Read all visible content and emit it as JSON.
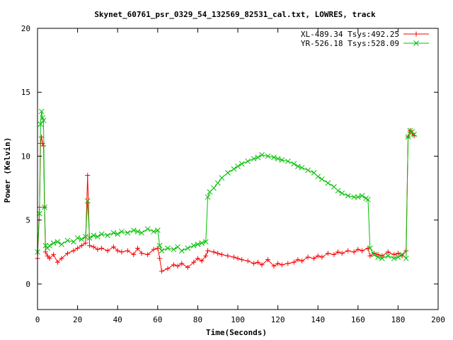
{
  "chart_data": {
    "type": "scatter",
    "title": "Skynet_60761_psr_0329_54_132569_82531_cal.txt, LOWRES, track",
    "xlabel": "Time(Seconds)",
    "ylabel": "Power (Kelvin)",
    "xlim": [
      0,
      200
    ],
    "ylim": [
      -2,
      20
    ],
    "xticks": [
      0,
      20,
      40,
      60,
      80,
      100,
      120,
      140,
      160,
      180,
      200
    ],
    "yticks": [
      0,
      5,
      10,
      15,
      20
    ],
    "grid": false,
    "legend_position": "top-right",
    "series": [
      {
        "name": "XL-489.34 Tsys:492.25",
        "color": "#ff0000",
        "marker": "plus",
        "x": [
          0,
          1,
          1.5,
          2,
          2.5,
          3,
          3.5,
          4,
          5,
          6,
          8,
          10,
          12,
          15,
          18,
          20,
          22,
          24,
          25,
          26,
          28,
          30,
          32,
          35,
          38,
          40,
          42,
          45,
          48,
          50,
          52,
          55,
          58,
          60,
          61,
          62,
          65,
          68,
          70,
          72,
          75,
          78,
          80,
          82,
          84,
          85,
          88,
          90,
          92,
          95,
          98,
          100,
          102,
          105,
          108,
          110,
          112,
          115,
          118,
          120,
          122,
          125,
          128,
          130,
          132,
          135,
          138,
          140,
          142,
          145,
          148,
          150,
          152,
          155,
          158,
          160,
          162,
          165,
          166,
          168,
          170,
          172,
          175,
          178,
          180,
          182,
          184,
          185,
          186,
          187,
          188
        ],
        "y": [
          2.0,
          6.0,
          11.0,
          11.5,
          11.0,
          10.8,
          6.0,
          2.5,
          2.2,
          2.0,
          2.3,
          1.7,
          2.0,
          2.4,
          2.6,
          2.8,
          3.0,
          3.2,
          8.5,
          3.0,
          2.9,
          2.7,
          2.8,
          2.6,
          2.9,
          2.6,
          2.5,
          2.6,
          2.3,
          2.8,
          2.4,
          2.3,
          2.7,
          2.8,
          2.0,
          1.0,
          1.2,
          1.5,
          1.4,
          1.6,
          1.3,
          1.7,
          2.0,
          1.8,
          2.2,
          2.6,
          2.5,
          2.4,
          2.3,
          2.2,
          2.1,
          2.0,
          1.9,
          1.8,
          1.6,
          1.7,
          1.5,
          1.9,
          1.4,
          1.6,
          1.5,
          1.6,
          1.7,
          1.9,
          1.8,
          2.1,
          2.0,
          2.2,
          2.1,
          2.4,
          2.3,
          2.5,
          2.4,
          2.6,
          2.5,
          2.7,
          2.6,
          2.8,
          2.2,
          2.4,
          2.3,
          2.2,
          2.5,
          2.3,
          2.4,
          2.2,
          2.6,
          11.5,
          12.0,
          11.8,
          11.6
        ]
      },
      {
        "name": "YR-526.18 Tsys:528.09",
        "color": "#00c000",
        "marker": "cross",
        "x": [
          0,
          1,
          1.5,
          2,
          2.5,
          3,
          3.5,
          4,
          5,
          6,
          8,
          10,
          12,
          15,
          18,
          20,
          22,
          24,
          25,
          26,
          28,
          30,
          32,
          35,
          38,
          40,
          42,
          45,
          48,
          50,
          52,
          55,
          58,
          60,
          61,
          62,
          65,
          68,
          70,
          72,
          75,
          78,
          80,
          82,
          84,
          85,
          86,
          88,
          90,
          92,
          95,
          98,
          100,
          102,
          105,
          108,
          110,
          112,
          115,
          118,
          120,
          122,
          125,
          128,
          130,
          132,
          135,
          138,
          140,
          142,
          145,
          148,
          150,
          152,
          155,
          158,
          160,
          162,
          164,
          165,
          166,
          168,
          170,
          172,
          175,
          178,
          180,
          182,
          184,
          185,
          186,
          187,
          188
        ],
        "y": [
          2.5,
          5.5,
          12.5,
          13.5,
          13.0,
          12.8,
          6.0,
          3.0,
          2.8,
          3.0,
          3.2,
          3.3,
          3.1,
          3.4,
          3.3,
          3.6,
          3.5,
          3.7,
          6.5,
          3.6,
          3.8,
          3.7,
          3.9,
          3.8,
          4.0,
          3.9,
          4.1,
          4.0,
          4.2,
          4.1,
          4.0,
          4.3,
          4.1,
          4.2,
          3.0,
          2.6,
          2.8,
          2.7,
          2.9,
          2.6,
          2.8,
          3.0,
          3.1,
          3.2,
          3.3,
          6.8,
          7.2,
          7.5,
          7.9,
          8.3,
          8.7,
          9.0,
          9.2,
          9.4,
          9.6,
          9.8,
          9.9,
          10.1,
          10.0,
          9.9,
          9.8,
          9.7,
          9.6,
          9.4,
          9.2,
          9.1,
          8.9,
          8.7,
          8.4,
          8.2,
          7.9,
          7.6,
          7.3,
          7.1,
          6.9,
          6.8,
          6.8,
          6.9,
          6.7,
          6.6,
          2.8,
          2.3,
          2.1,
          2.0,
          2.2,
          2.0,
          2.1,
          2.3,
          2.0,
          11.5,
          12.0,
          11.9,
          11.7
        ]
      }
    ]
  }
}
